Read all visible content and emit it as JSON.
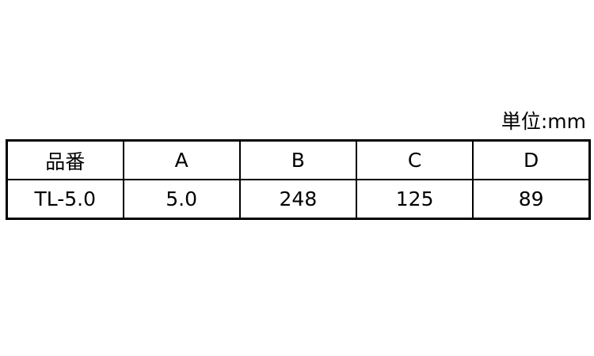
{
  "unit_label": "単位:mm",
  "table": {
    "headers": [
      "品番",
      "A",
      "B",
      "C",
      "D"
    ],
    "rows": [
      [
        "TL-5.0",
        "5.0",
        "248",
        "125",
        "89"
      ]
    ]
  }
}
